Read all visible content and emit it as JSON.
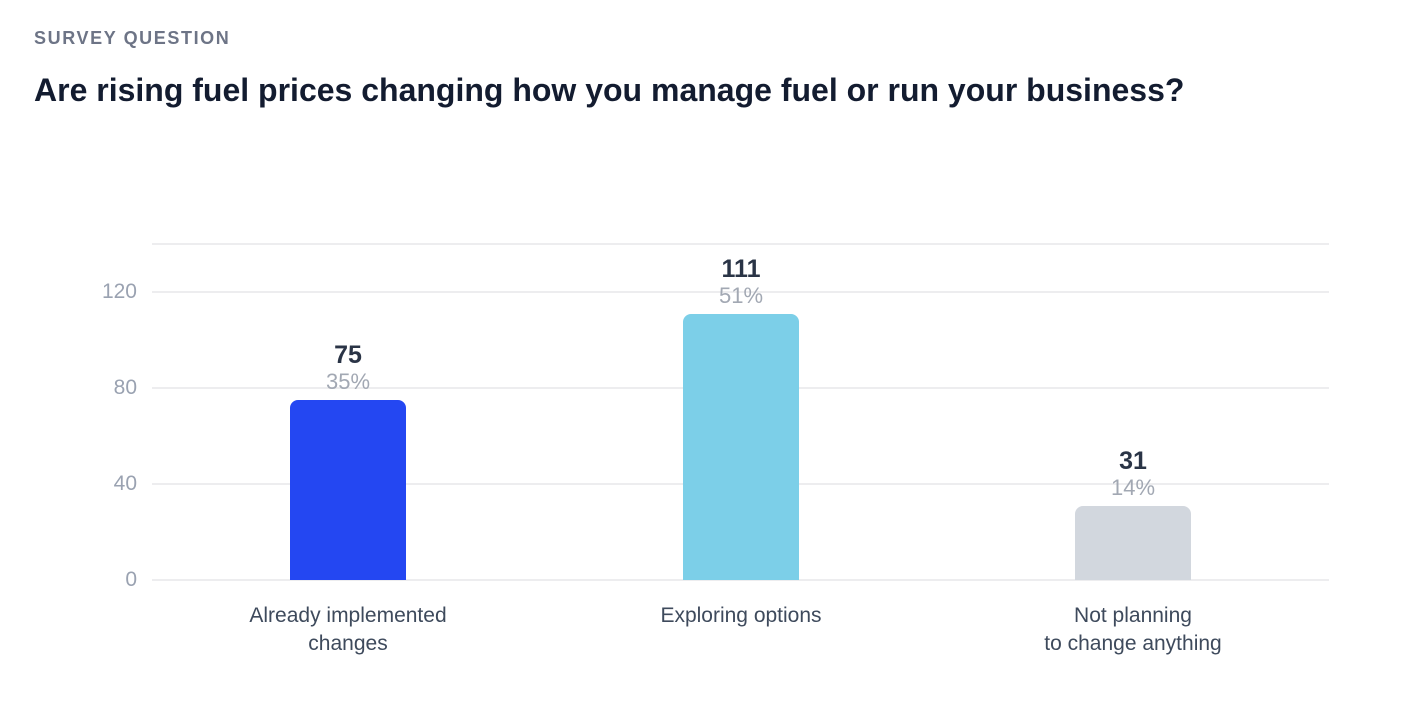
{
  "header": {
    "eyebrow": "SURVEY QUESTION",
    "title": "Are rising fuel prices changing how you manage fuel or run your business?"
  },
  "chart_data": {
    "type": "bar",
    "title": "Are rising fuel prices changing how you manage fuel or run your business?",
    "categories": [
      "Already implemented\nchanges",
      "Exploring options",
      "Not planning\nto change anything"
    ],
    "values": [
      75,
      111,
      31
    ],
    "percent_labels": [
      "35%",
      "51%",
      "14%"
    ],
    "bar_colors": [
      "#2447f2",
      "#7ccfe8",
      "#d2d7de"
    ],
    "xlabel": "",
    "ylabel": "",
    "ylim": [
      0,
      140
    ],
    "yticks": [
      0,
      40,
      80,
      120
    ],
    "grid": true,
    "legend": false,
    "gridline_color": "#ededef",
    "tick_label_color": "#9aa2b1",
    "value_label_color": "#2a3446",
    "percent_label_color": "#a2a8b3",
    "category_label_color": "#3e4a5c"
  }
}
